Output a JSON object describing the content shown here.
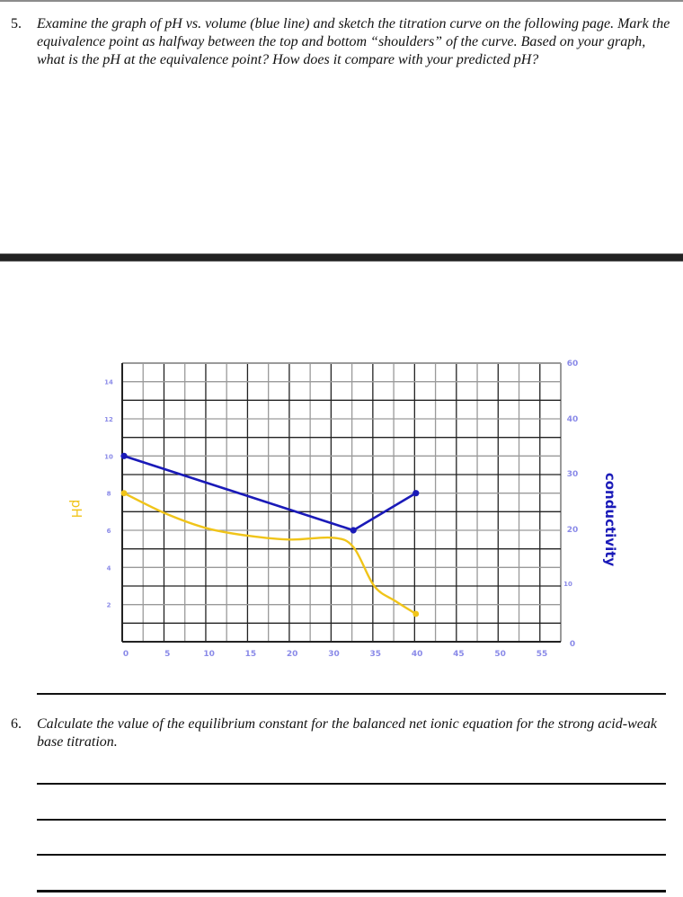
{
  "question5": {
    "number": "5.",
    "text": "Examine the graph of pH vs. volume (blue line) and sketch the titration curve on the following page. Mark the equivalence point as halfway between the top and bottom “shoulders” of the curve.  Based on your graph, what is the pH at the equivalence point?  How does it compare with your predicted pH?"
  },
  "question6": {
    "number": "6.",
    "text": "Calculate the value of the equilibrium constant for the balanced net ionic equation for the strong acid-weak base titration."
  },
  "colors": {
    "blue_line": "#1a1ab8",
    "yellow_line": "#f0c419",
    "tick_labels": "#8a8ae8",
    "grid_dark": "#222222",
    "grid_light": "#9a9a9a"
  },
  "chart_data": {
    "type": "line",
    "title": "",
    "xlabel": "",
    "ylabel_left": "pH",
    "ylabel_right": "conductivity",
    "x_tick_labels": [
      "0",
      "5",
      "10",
      "15",
      "20",
      "30",
      "35",
      "40",
      "45",
      "50",
      "55"
    ],
    "y_left_tick_labels": [
      "2",
      "4",
      "6",
      "8",
      "10",
      "12",
      "14"
    ],
    "y_right_tick_labels": [
      "0",
      "10",
      "20",
      "30",
      "40",
      "60"
    ],
    "ylim_left": [
      0,
      15
    ],
    "grid": true,
    "series": [
      {
        "name": "conductivity (blue)",
        "color": "#1a1ab8",
        "markers": true,
        "points": [
          {
            "x_label_pos": 0,
            "pH_scale": 10.0,
            "conductivity": 33
          },
          {
            "x_label_pos": 32.5,
            "pH_scale": 6.0,
            "conductivity": 20
          },
          {
            "x_label_pos": 40,
            "pH_scale": 8.0,
            "conductivity": 27
          }
        ]
      },
      {
        "name": "pH (yellow)",
        "color": "#f0c419",
        "markers": "endpoints",
        "points": [
          {
            "x_label_pos": 0,
            "pH": 8.0
          },
          {
            "x_label_pos": 5,
            "pH": 6.9
          },
          {
            "x_label_pos": 10,
            "pH": 6.1
          },
          {
            "x_label_pos": 15,
            "pH": 5.7
          },
          {
            "x_label_pos": 20,
            "pH": 5.5
          },
          {
            "x_label_pos": 30,
            "pH": 5.6
          },
          {
            "x_label_pos": 32.5,
            "pH": 5.1
          },
          {
            "x_label_pos": 35,
            "pH": 3.0
          },
          {
            "x_label_pos": 37.5,
            "pH": 2.2
          },
          {
            "x_label_pos": 40,
            "pH": 1.5
          }
        ]
      }
    ]
  }
}
